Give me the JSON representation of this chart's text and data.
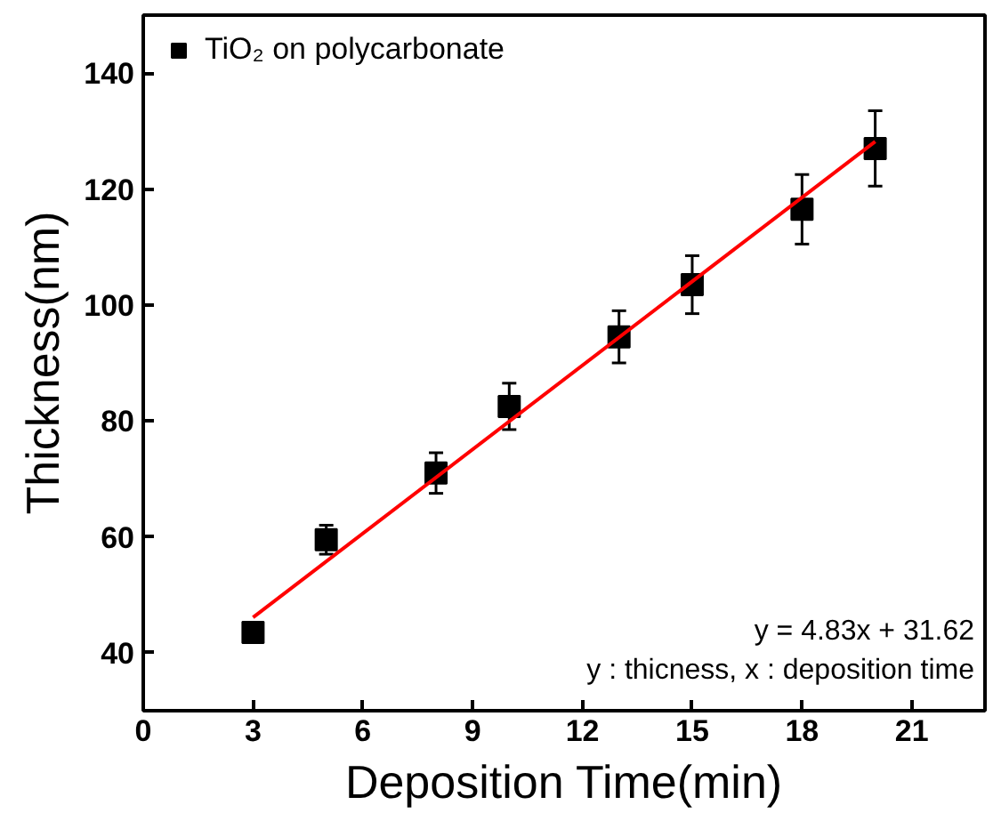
{
  "chart_data": {
    "type": "scatter",
    "xlabel": "Deposition Time(min)",
    "ylabel": "Thickness(nm)",
    "xlim": [
      0,
      23
    ],
    "xticks": [
      0,
      3,
      6,
      9,
      12,
      15,
      18,
      21
    ],
    "ylim": [
      30,
      150
    ],
    "yticks": [
      40,
      60,
      80,
      100,
      120,
      140
    ],
    "series": [
      {
        "name": "TiO₂ on polycarbonate",
        "color": "#000000",
        "marker": "square",
        "x": [
          3,
          5,
          8,
          10,
          13,
          15,
          18,
          20
        ],
        "values": [
          43.5,
          59.5,
          71,
          82.5,
          94.5,
          103.5,
          116.5,
          127
        ],
        "errors": [
          1.5,
          2.5,
          3.5,
          4,
          4.5,
          5,
          6,
          6.5
        ]
      },
      {
        "type": "line",
        "color": "#ff0000",
        "x": [
          3,
          20
        ],
        "values": [
          46.1,
          128.2
        ]
      }
    ],
    "annotations": [
      "y = 4.83x + 31.62",
      "y : thicness, x : deposition time"
    ],
    "legend": "top left",
    "grid": false
  }
}
